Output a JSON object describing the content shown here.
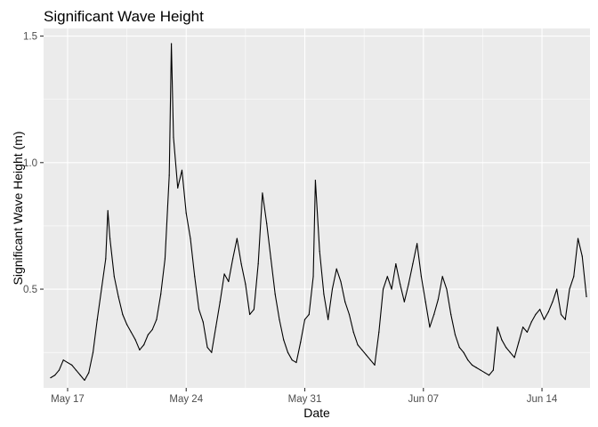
{
  "chart_data": {
    "type": "line",
    "title": "Significant Wave Height",
    "xlabel": "Date",
    "ylabel": "Significant Wave Height (m)",
    "x_tick_labels": [
      "May 17",
      "May 24",
      "May 31",
      "Jun 07",
      "Jun 14"
    ],
    "y_tick_labels": [
      "0.5",
      "1.0",
      "1.5"
    ],
    "y_ticks": [
      0.5,
      1.0,
      1.5
    ],
    "ylim": [
      0.11,
      1.53
    ],
    "xlim": [
      "2023-05-15T14:00",
      "2023-06-16T20:00"
    ],
    "grid": true,
    "panel_color": "#ebebeb",
    "line_color": "#000000",
    "series": [
      {
        "values": [
          [
            "2023-05-16T00:00",
            0.15
          ],
          [
            "2023-05-16T06:00",
            0.16
          ],
          [
            "2023-05-16T12:00",
            0.18
          ],
          [
            "2023-05-16T18:00",
            0.22
          ],
          [
            "2023-05-17T00:00",
            0.21
          ],
          [
            "2023-05-17T06:00",
            0.2
          ],
          [
            "2023-05-17T12:00",
            0.18
          ],
          [
            "2023-05-17T18:00",
            0.16
          ],
          [
            "2023-05-18T00:00",
            0.14
          ],
          [
            "2023-05-18T06:00",
            0.17
          ],
          [
            "2023-05-18T12:00",
            0.25
          ],
          [
            "2023-05-18T18:00",
            0.38
          ],
          [
            "2023-05-19T00:00",
            0.5
          ],
          [
            "2023-05-19T06:00",
            0.62
          ],
          [
            "2023-05-19T09:00",
            0.81
          ],
          [
            "2023-05-19T12:00",
            0.7
          ],
          [
            "2023-05-19T18:00",
            0.55
          ],
          [
            "2023-05-20T00:00",
            0.47
          ],
          [
            "2023-05-20T06:00",
            0.4
          ],
          [
            "2023-05-20T12:00",
            0.36
          ],
          [
            "2023-05-20T18:00",
            0.33
          ],
          [
            "2023-05-21T00:00",
            0.3
          ],
          [
            "2023-05-21T06:00",
            0.26
          ],
          [
            "2023-05-21T12:00",
            0.28
          ],
          [
            "2023-05-21T18:00",
            0.32
          ],
          [
            "2023-05-22T00:00",
            0.34
          ],
          [
            "2023-05-22T06:00",
            0.38
          ],
          [
            "2023-05-22T12:00",
            0.48
          ],
          [
            "2023-05-22T18:00",
            0.62
          ],
          [
            "2023-05-23T00:00",
            0.95
          ],
          [
            "2023-05-23T03:00",
            1.47
          ],
          [
            "2023-05-23T06:00",
            1.1
          ],
          [
            "2023-05-23T12:00",
            0.9
          ],
          [
            "2023-05-23T18:00",
            0.97
          ],
          [
            "2023-05-24T00:00",
            0.8
          ],
          [
            "2023-05-24T06:00",
            0.7
          ],
          [
            "2023-05-24T12:00",
            0.55
          ],
          [
            "2023-05-24T18:00",
            0.42
          ],
          [
            "2023-05-25T00:00",
            0.37
          ],
          [
            "2023-05-25T06:00",
            0.27
          ],
          [
            "2023-05-25T12:00",
            0.25
          ],
          [
            "2023-05-25T18:00",
            0.35
          ],
          [
            "2023-05-26T00:00",
            0.45
          ],
          [
            "2023-05-26T06:00",
            0.56
          ],
          [
            "2023-05-26T12:00",
            0.53
          ],
          [
            "2023-05-26T18:00",
            0.62
          ],
          [
            "2023-05-27T00:00",
            0.7
          ],
          [
            "2023-05-27T06:00",
            0.6
          ],
          [
            "2023-05-27T12:00",
            0.52
          ],
          [
            "2023-05-27T18:00",
            0.4
          ],
          [
            "2023-05-28T00:00",
            0.42
          ],
          [
            "2023-05-28T06:00",
            0.6
          ],
          [
            "2023-05-28T12:00",
            0.88
          ],
          [
            "2023-05-28T18:00",
            0.76
          ],
          [
            "2023-05-29T00:00",
            0.62
          ],
          [
            "2023-05-29T06:00",
            0.48
          ],
          [
            "2023-05-29T12:00",
            0.38
          ],
          [
            "2023-05-29T18:00",
            0.3
          ],
          [
            "2023-05-30T00:00",
            0.25
          ],
          [
            "2023-05-30T06:00",
            0.22
          ],
          [
            "2023-05-30T12:00",
            0.21
          ],
          [
            "2023-05-30T18:00",
            0.29
          ],
          [
            "2023-05-31T00:00",
            0.38
          ],
          [
            "2023-05-31T06:00",
            0.4
          ],
          [
            "2023-05-31T12:00",
            0.55
          ],
          [
            "2023-05-31T15:00",
            0.93
          ],
          [
            "2023-05-31T21:00",
            0.65
          ],
          [
            "2023-06-01T03:00",
            0.48
          ],
          [
            "2023-06-01T09:00",
            0.38
          ],
          [
            "2023-06-01T15:00",
            0.5
          ],
          [
            "2023-06-01T21:00",
            0.58
          ],
          [
            "2023-06-02T03:00",
            0.53
          ],
          [
            "2023-06-02T09:00",
            0.45
          ],
          [
            "2023-06-02T15:00",
            0.4
          ],
          [
            "2023-06-02T21:00",
            0.33
          ],
          [
            "2023-06-03T03:00",
            0.28
          ],
          [
            "2023-06-03T09:00",
            0.26
          ],
          [
            "2023-06-03T15:00",
            0.24
          ],
          [
            "2023-06-03T21:00",
            0.22
          ],
          [
            "2023-06-04T03:00",
            0.2
          ],
          [
            "2023-06-04T09:00",
            0.33
          ],
          [
            "2023-06-04T15:00",
            0.5
          ],
          [
            "2023-06-04T21:00",
            0.55
          ],
          [
            "2023-06-05T03:00",
            0.5
          ],
          [
            "2023-06-05T09:00",
            0.6
          ],
          [
            "2023-06-05T15:00",
            0.52
          ],
          [
            "2023-06-05T21:00",
            0.45
          ],
          [
            "2023-06-06T03:00",
            0.52
          ],
          [
            "2023-06-06T09:00",
            0.6
          ],
          [
            "2023-06-06T15:00",
            0.68
          ],
          [
            "2023-06-06T21:00",
            0.55
          ],
          [
            "2023-06-07T03:00",
            0.45
          ],
          [
            "2023-06-07T09:00",
            0.35
          ],
          [
            "2023-06-07T15:00",
            0.4
          ],
          [
            "2023-06-07T21:00",
            0.46
          ],
          [
            "2023-06-08T03:00",
            0.55
          ],
          [
            "2023-06-08T09:00",
            0.5
          ],
          [
            "2023-06-08T15:00",
            0.4
          ],
          [
            "2023-06-08T21:00",
            0.32
          ],
          [
            "2023-06-09T03:00",
            0.27
          ],
          [
            "2023-06-09T09:00",
            0.25
          ],
          [
            "2023-06-09T15:00",
            0.22
          ],
          [
            "2023-06-09T21:00",
            0.2
          ],
          [
            "2023-06-10T03:00",
            0.19
          ],
          [
            "2023-06-10T09:00",
            0.18
          ],
          [
            "2023-06-10T15:00",
            0.17
          ],
          [
            "2023-06-10T21:00",
            0.16
          ],
          [
            "2023-06-11T03:00",
            0.18
          ],
          [
            "2023-06-11T09:00",
            0.35
          ],
          [
            "2023-06-11T15:00",
            0.3
          ],
          [
            "2023-06-11T21:00",
            0.27
          ],
          [
            "2023-06-12T03:00",
            0.25
          ],
          [
            "2023-06-12T09:00",
            0.23
          ],
          [
            "2023-06-12T15:00",
            0.29
          ],
          [
            "2023-06-12T21:00",
            0.35
          ],
          [
            "2023-06-13T03:00",
            0.33
          ],
          [
            "2023-06-13T09:00",
            0.37
          ],
          [
            "2023-06-13T15:00",
            0.4
          ],
          [
            "2023-06-13T21:00",
            0.42
          ],
          [
            "2023-06-14T03:00",
            0.38
          ],
          [
            "2023-06-14T09:00",
            0.41
          ],
          [
            "2023-06-14T15:00",
            0.45
          ],
          [
            "2023-06-14T21:00",
            0.5
          ],
          [
            "2023-06-15T03:00",
            0.4
          ],
          [
            "2023-06-15T09:00",
            0.38
          ],
          [
            "2023-06-15T15:00",
            0.5
          ],
          [
            "2023-06-15T21:00",
            0.55
          ],
          [
            "2023-06-16T03:00",
            0.7
          ],
          [
            "2023-06-16T09:00",
            0.63
          ],
          [
            "2023-06-16T15:00",
            0.47
          ]
        ]
      }
    ]
  }
}
